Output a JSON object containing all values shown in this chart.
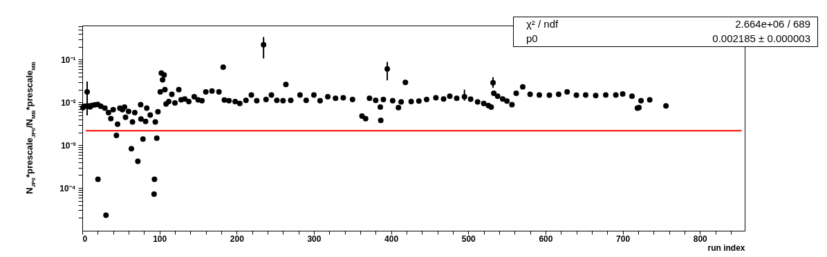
{
  "chart_data": {
    "type": "scatter",
    "xlabel": "run index",
    "ylabel": "N$_{JP0}$*prescale$_{JP0}$/N$_{MB}$*prescale$_{MB}$",
    "log": "y",
    "grid": false,
    "marker": "circle",
    "xlim": [
      0,
      858
    ],
    "ylim": [
      1e-05,
      0.63
    ],
    "xticks": [
      0,
      {
        "value": 20,
        "label": null
      },
      {
        "value": 40,
        "label": null
      },
      {
        "value": 60,
        "label": null
      },
      {
        "value": 80,
        "label": null
      },
      100,
      {
        "value": 120,
        "label": null
      },
      {
        "value": 140,
        "label": null
      },
      {
        "value": 160,
        "label": null
      },
      {
        "value": 180,
        "label": null
      },
      200,
      {
        "value": 220,
        "label": null
      },
      {
        "value": 240,
        "label": null
      },
      {
        "value": 260,
        "label": null
      },
      {
        "value": 280,
        "label": null
      },
      300,
      {
        "value": 320,
        "label": null
      },
      {
        "value": 340,
        "label": null
      },
      {
        "value": 360,
        "label": null
      },
      {
        "value": 380,
        "label": null
      },
      400,
      {
        "value": 420,
        "label": null
      },
      {
        "value": 440,
        "label": null
      },
      {
        "value": 460,
        "label": null
      },
      {
        "value": 480,
        "label": null
      },
      500,
      {
        "value": 520,
        "label": null
      },
      {
        "value": 540,
        "label": null
      },
      {
        "value": 560,
        "label": null
      },
      {
        "value": 580,
        "label": null
      },
      600,
      {
        "value": 620,
        "label": null
      },
      {
        "value": 640,
        "label": null
      },
      {
        "value": 660,
        "label": null
      },
      {
        "value": 680,
        "label": null
      },
      700,
      {
        "value": 720,
        "label": null
      },
      {
        "value": 740,
        "label": null
      },
      {
        "value": 760,
        "label": null
      },
      {
        "value": 780,
        "label": null
      },
      800,
      {
        "value": 820,
        "label": null
      },
      {
        "value": 840,
        "label": null
      }
    ],
    "yticks": [
      {
        "value": 2e-05,
        "label": null
      },
      {
        "value": 3e-05,
        "label": null
      },
      {
        "value": 4e-05,
        "label": null
      },
      {
        "value": 5e-05,
        "label": null
      },
      {
        "value": 6e-05,
        "label": null
      },
      {
        "value": 7e-05,
        "label": null
      },
      {
        "value": 8e-05,
        "label": null
      },
      {
        "value": 9e-05,
        "label": null
      },
      {
        "value": 0.0001,
        "label": "10⁻⁴"
      },
      {
        "value": 0.0002,
        "label": null
      },
      {
        "value": 0.0003,
        "label": null
      },
      {
        "value": 0.0004,
        "label": null
      },
      {
        "value": 0.0005,
        "label": null
      },
      {
        "value": 0.0006,
        "label": null
      },
      {
        "value": 0.0007,
        "label": null
      },
      {
        "value": 0.0008,
        "label": null
      },
      {
        "value": 0.0009,
        "label": null
      },
      {
        "value": 0.001,
        "label": "10⁻³"
      },
      {
        "value": 0.002,
        "label": null
      },
      {
        "value": 0.003,
        "label": null
      },
      {
        "value": 0.004,
        "label": null
      },
      {
        "value": 0.005,
        "label": null
      },
      {
        "value": 0.006,
        "label": null
      },
      {
        "value": 0.007,
        "label": null
      },
      {
        "value": 0.008,
        "label": null
      },
      {
        "value": 0.009,
        "label": null
      },
      {
        "value": 0.01,
        "label": "10⁻²"
      },
      {
        "value": 0.02,
        "label": null
      },
      {
        "value": 0.03,
        "label": null
      },
      {
        "value": 0.04,
        "label": null
      },
      {
        "value": 0.05,
        "label": null
      },
      {
        "value": 0.06,
        "label": null
      },
      {
        "value": 0.07,
        "label": null
      },
      {
        "value": 0.08,
        "label": null
      },
      {
        "value": 0.09,
        "label": null
      },
      {
        "value": 0.1,
        "label": "10⁻¹"
      },
      {
        "value": 0.2,
        "label": null
      },
      {
        "value": 0.3,
        "label": null
      },
      {
        "value": 0.4,
        "label": null
      },
      {
        "value": 0.5,
        "label": null
      },
      {
        "value": 0.6,
        "label": null
      }
    ],
    "annotations": [
      "χ² / ndf",
      "2.664e+06 / 689",
      "p0",
      "0.002185 ± 0.000003"
    ],
    "series": [
      {
        "color": "#000000",
        "x": [
          0.9,
          3,
          6.3,
          7,
          10,
          12,
          16,
          20,
          20.3,
          24,
          29.3,
          30.7,
          34,
          37,
          40,
          44.2,
          45.7,
          48.7,
          52,
          54.7,
          56,
          60,
          63.6,
          65,
          68,
          72,
          75.6,
          76,
          78.6,
          82,
          83.5,
          88,
          93,
          93.5,
          94.6,
          96.5,
          98,
          101,
          102.4,
          104,
          106,
          107,
          108.5,
          112,
          116,
          120,
          125,
          128,
          132.7,
          138,
          145,
          150,
          155,
          160,
          168,
          177,
          182.5,
          184,
          190,
          198,
          204,
          212,
          219,
          226,
          234.8,
          238,
          245,
          252,
          260,
          263.7,
          270,
          282,
          290,
          300,
          308,
          318,
          328,
          338,
          350,
          362.3,
          367,
          372,
          380,
          386,
          386.6,
          390,
          395,
          402,
          409.5,
          413,
          418.5,
          426,
          436,
          446,
          458,
          468,
          476,
          485,
          495,
          503,
          512,
          520,
          526,
          529.6,
          532,
          533,
          538,
          544.5,
          550,
          556.5,
          562,
          570.5,
          580,
          592,
          605,
          617,
          628,
          640,
          652,
          665,
          678,
          691,
          700,
          712,
          719,
          721,
          723.7,
          735,
          756
        ],
        "values": [
          0.0076,
          0.0082,
          0.0177,
          0.0083,
          0.0079,
          0.0085,
          0.0088,
          0.009,
          0.00016,
          0.0082,
          0.0074,
          2.3e-05,
          0.0058,
          0.0042,
          0.0068,
          0.0017,
          0.0031,
          0.0074,
          0.0068,
          0.0078,
          0.0045,
          0.0062,
          0.00083,
          0.0035,
          0.0058,
          0.00042,
          0.0089,
          0.0041,
          0.0014,
          0.0036,
          0.0074,
          0.0051,
          7.2e-05,
          0.00016,
          0.0035,
          0.00147,
          0.0061,
          0.0177,
          0.049,
          0.034,
          0.044,
          0.02,
          0.0092,
          0.0105,
          0.0155,
          0.0098,
          0.02,
          0.0115,
          0.0121,
          0.0105,
          0.0137,
          0.0115,
          0.011,
          0.0177,
          0.0185,
          0.0177,
          0.067,
          0.0114,
          0.011,
          0.0105,
          0.0095,
          0.0112,
          0.015,
          0.011,
          0.224,
          0.0118,
          0.015,
          0.0112,
          0.011,
          0.0265,
          0.0112,
          0.015,
          0.0112,
          0.015,
          0.011,
          0.0137,
          0.0125,
          0.0129,
          0.0118,
          0.0048,
          0.0042,
          0.0125,
          0.0112,
          0.0078,
          0.0038,
          0.0118,
          0.061,
          0.011,
          0.0076,
          0.0103,
          0.0296,
          0.0105,
          0.0108,
          0.0118,
          0.0129,
          0.0121,
          0.014,
          0.0125,
          0.0137,
          0.012,
          0.0103,
          0.0095,
          0.0085,
          0.0078,
          0.029,
          0.0165,
          0.014,
          0.0121,
          0.0108,
          0.0089,
          0.0165,
          0.0231,
          0.0155,
          0.015,
          0.0148,
          0.0155,
          0.0177,
          0.0148,
          0.015,
          0.0145,
          0.015,
          0.015,
          0.0158,
          0.014,
          0.0074,
          0.0076,
          0.011,
          0.0115,
          0.0083
        ],
        "errors": [
          null,
          null,
          [
            0.005,
            0.031
          ],
          null,
          null,
          null,
          null,
          null,
          null,
          null,
          null,
          null,
          null,
          null,
          null,
          null,
          null,
          null,
          null,
          null,
          null,
          null,
          null,
          null,
          null,
          null,
          null,
          null,
          null,
          null,
          null,
          null,
          null,
          null,
          null,
          null,
          null,
          null,
          null,
          null,
          null,
          null,
          null,
          null,
          null,
          null,
          null,
          null,
          null,
          null,
          null,
          null,
          null,
          null,
          null,
          null,
          null,
          null,
          null,
          null,
          null,
          null,
          null,
          null,
          [
            0.107,
            0.34
          ],
          null,
          null,
          null,
          null,
          null,
          null,
          null,
          null,
          null,
          null,
          null,
          null,
          null,
          null,
          null,
          null,
          null,
          null,
          null,
          null,
          null,
          [
            0.033,
            0.089
          ],
          null,
          null,
          null,
          null,
          null,
          null,
          null,
          null,
          null,
          null,
          null,
          [
            0.011,
            0.02
          ],
          null,
          null,
          null,
          null,
          null,
          [
            0.022,
            0.039
          ],
          null,
          null,
          null,
          null,
          null,
          null,
          null,
          null,
          null,
          null,
          null,
          null,
          null,
          null,
          null,
          null,
          null,
          null,
          null,
          null,
          null,
          null,
          null,
          null
        ]
      },
      {
        "type": "line",
        "marker": "none",
        "color": "#ff0000",
        "x": [
          4.5,
          854
        ],
        "values": [
          0.002185,
          0.002185
        ]
      }
    ]
  }
}
